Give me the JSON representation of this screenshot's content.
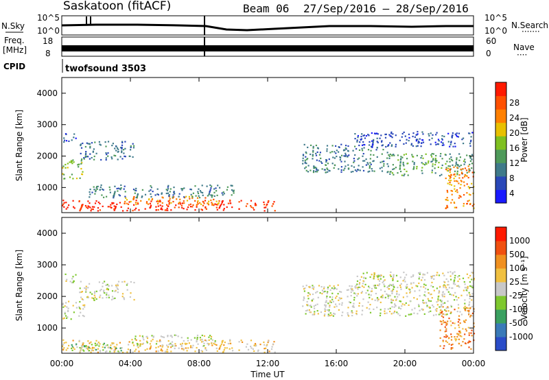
{
  "chart_data": {
    "type": "heatmap",
    "header": {
      "radar": "Saskatoon (fitACF)",
      "beam": "Beam 06",
      "dates": "27/Sep/2016 – 28/Sep/2016"
    },
    "top_panels": {
      "nsky_label": "N.Sky",
      "nsky_ticks": [
        "10^5",
        "10^0"
      ],
      "nsearch_label": "N.Search",
      "nsearch_ticks": [
        "10^5",
        "10^0"
      ],
      "freq_label_line1": "Freq.",
      "freq_label_line2": "[MHz]",
      "freq_ticks": [
        "18",
        "8"
      ],
      "nave_label": "Nave",
      "nave_ticks": [
        "60",
        "0"
      ],
      "cpid_label": "CPID",
      "cpid_value": "twofsound 3503"
    },
    "x_axis": {
      "label": "Time UT",
      "ticks": [
        "00:00",
        "04:00",
        "08:00",
        "12:00",
        "16:00",
        "20:00",
        "00:00"
      ],
      "range_hours": [
        0,
        24
      ]
    },
    "y_axis": {
      "label": "Slant Range [km]",
      "ticks": [
        1000,
        2000,
        3000,
        4000
      ],
      "range_km": [
        200,
        4500
      ]
    },
    "power_panel": {
      "colorbar_label": "Power [dB]",
      "colorbar_ticks": [
        "28",
        "24",
        "20",
        "16",
        "12",
        "8",
        "4"
      ],
      "colors": [
        "#1a1aff",
        "#2a48b8",
        "#3f7a8a",
        "#4f9a5a",
        "#7fc020",
        "#e8c000",
        "#ff8000",
        "#ff5000",
        "#ff1a00"
      ],
      "bands": [
        {
          "t0": 0.0,
          "t1": 12.4,
          "r0": 280,
          "r1": 620,
          "level": 8
        },
        {
          "t0": 3.6,
          "t1": 9.2,
          "r0": 450,
          "r1": 750,
          "level": 6
        },
        {
          "t0": 0.0,
          "t1": 1.2,
          "r0": 1300,
          "r1": 1900,
          "level": 4
        },
        {
          "t0": 0.0,
          "t1": 0.8,
          "r0": 2450,
          "r1": 2750,
          "level": 1
        },
        {
          "t0": 1.0,
          "t1": 4.2,
          "r0": 1900,
          "r1": 2500,
          "level": 2
        },
        {
          "t0": 14.0,
          "t1": 19.0,
          "r0": 1500,
          "r1": 2400,
          "level": 2
        },
        {
          "t0": 19.0,
          "t1": 24.0,
          "r0": 1400,
          "r1": 2100,
          "level": 3
        },
        {
          "t0": 17.0,
          "t1": 24.0,
          "r0": 2300,
          "r1": 2800,
          "level": 1
        },
        {
          "t0": 22.3,
          "t1": 24.0,
          "r0": 350,
          "r1": 1700,
          "level": 6
        },
        {
          "t0": 1.5,
          "t1": 10.0,
          "r0": 700,
          "r1": 1100,
          "level": 2
        }
      ]
    },
    "velocity_panel": {
      "colorbar_label": "Velocity [m s⁻¹]",
      "colorbar_ticks": [
        "1000",
        "500",
        "100",
        "25",
        "-25",
        "-100",
        "-500",
        "-1000"
      ],
      "colors": [
        "#2a4cc8",
        "#3a7ab8",
        "#3aa060",
        "#7ec82e",
        "#c8c8c8",
        "#f0c040",
        "#f09020",
        "#f05010",
        "#ff1a00"
      ],
      "bands": [
        {
          "t0": 0.0,
          "t1": 12.4,
          "r0": 250,
          "r1": 650,
          "level": 5
        },
        {
          "t0": 0.5,
          "t1": 3.5,
          "r0": 250,
          "r1": 550,
          "level": 3
        },
        {
          "t0": 4.0,
          "t1": 9.0,
          "r0": 450,
          "r1": 800,
          "level": 4
        },
        {
          "t0": 0.0,
          "t1": 1.3,
          "r0": 1300,
          "r1": 1900,
          "level": 4
        },
        {
          "t0": 0.0,
          "t1": 0.8,
          "r0": 2450,
          "r1": 2750,
          "level": 4
        },
        {
          "t0": 1.0,
          "t1": 4.2,
          "r0": 1900,
          "r1": 2500,
          "level": 4
        },
        {
          "t0": 14.0,
          "t1": 24.0,
          "r0": 1400,
          "r1": 2400,
          "level": 4
        },
        {
          "t0": 17.0,
          "t1": 24.0,
          "r0": 2300,
          "r1": 2800,
          "level": 4
        },
        {
          "t0": 22.0,
          "t1": 24.0,
          "r0": 350,
          "r1": 1700,
          "level": 6
        }
      ]
    }
  }
}
